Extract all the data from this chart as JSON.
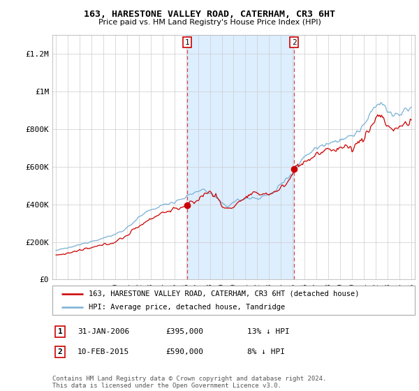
{
  "title": "163, HARESTONE VALLEY ROAD, CATERHAM, CR3 6HT",
  "subtitle": "Price paid vs. HM Land Registry's House Price Index (HPI)",
  "ylim": [
    0,
    1300000
  ],
  "yticks": [
    0,
    200000,
    400000,
    600000,
    800000,
    1000000,
    1200000
  ],
  "xlim_start": 1994.7,
  "xlim_end": 2025.3,
  "purchase1_x": 2006.08,
  "purchase1_y": 395000,
  "purchase1_label": "1",
  "purchase2_x": 2015.12,
  "purchase2_y": 590000,
  "purchase2_label": "2",
  "line_color_property": "#cc0000",
  "line_color_hpi": "#7ab0d4",
  "fill_between_color": "#ddeeff",
  "vline_color": "#dd4444",
  "annotation_box_color": "#cc0000",
  "grid_color": "#cccccc",
  "plot_bg_color": "#ffffff",
  "legend_label_property": "163, HARESTONE VALLEY ROAD, CATERHAM, CR3 6HT (detached house)",
  "legend_label_hpi": "HPI: Average price, detached house, Tandridge",
  "table_row1": [
    "1",
    "31-JAN-2006",
    "£395,000",
    "13% ↓ HPI"
  ],
  "table_row2": [
    "2",
    "10-FEB-2015",
    "£590,000",
    "8% ↓ HPI"
  ],
  "footer": "Contains HM Land Registry data © Crown copyright and database right 2024.\nThis data is licensed under the Open Government Licence v3.0."
}
